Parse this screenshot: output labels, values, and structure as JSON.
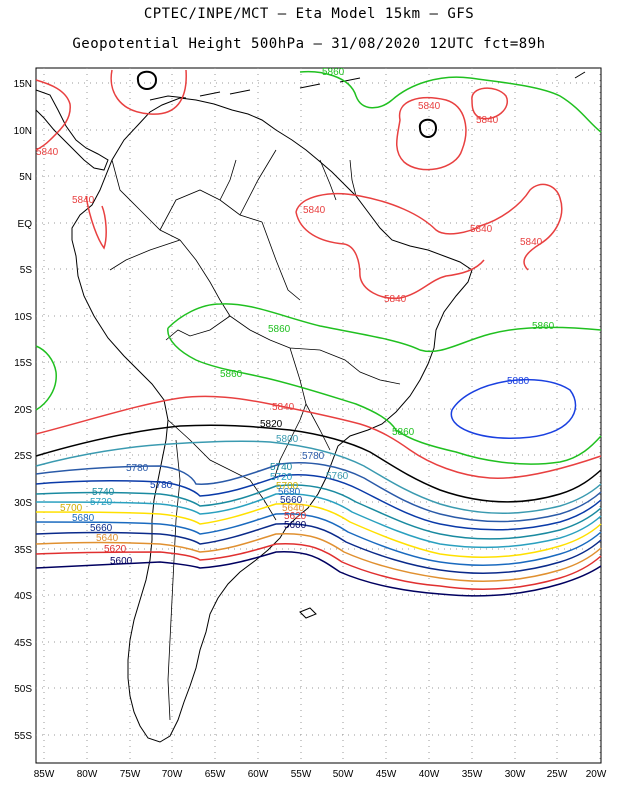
{
  "header": {
    "line1": "CPTEC/INPE/MCT –  Eta Model 15km – GFS",
    "line2": "Geopotential Height 500hPa – 31/08/2020 12UTC fct=89h"
  },
  "axes": {
    "lat_labels": [
      "15N",
      "10N",
      "5N",
      "EQ",
      "5S",
      "10S",
      "15S",
      "20S",
      "25S",
      "30S",
      "35S",
      "40S",
      "45S",
      "50S",
      "55S"
    ],
    "lon_labels": [
      "85W",
      "80W",
      "75W",
      "70W",
      "65W",
      "60W",
      "55W",
      "50W",
      "45W",
      "40W",
      "35W",
      "30W",
      "25W",
      "20W"
    ]
  },
  "colors": {
    "c5600": "#000060",
    "c5620": "#e03030",
    "c5640": "#e09030",
    "c5660": "#0a2a8a",
    "c5680": "#ffe000",
    "c5700": "#1a6abf",
    "c5720": "#2aa0bf",
    "c5740": "#1a8aa0",
    "c5760": "#0a3aa8",
    "c5780": "#2a5aa8",
    "c5800": "#3a9ab0",
    "c5820": "#000000",
    "c5840": "#e84040",
    "c5860": "#20c020",
    "c5880": "#1a40e0",
    "coast": "#000000",
    "grid": "#808080"
  },
  "labels": {
    "l5860_top": "5860",
    "l5840_a": "5840",
    "l5840_b": "5840",
    "l5840_c": "5840",
    "l5840_d": "5840",
    "l5840_e": "5840",
    "l5840_f": "5840",
    "l5840_g": "5840",
    "l5860_mid": "5860",
    "l5860_right": "5860",
    "l5860_left": "5860",
    "l5880": "5880",
    "l5840_h": "5840",
    "l5860_low": "5860",
    "l5820": "5820",
    "l5800": "5800",
    "l5780_a": "5780",
    "l5780_b": "5780",
    "l5780_c": "5780",
    "l5760": "5760",
    "l5740_a": "5740",
    "l5740_b": "5740",
    "l5720_a": "5720",
    "l5720_b": "5720",
    "l5700_a": "5700",
    "l5700_b": "5700",
    "l5680_a": "5680",
    "l5680_b": "5680",
    "l5660_a": "5660",
    "l5660_b": "5660",
    "l5640_a": "5640",
    "l5640_b": "5640",
    "l5620_a": "5620",
    "l5620_b": "5620",
    "l5600_a": "5600",
    "l5600_b": "5600"
  }
}
